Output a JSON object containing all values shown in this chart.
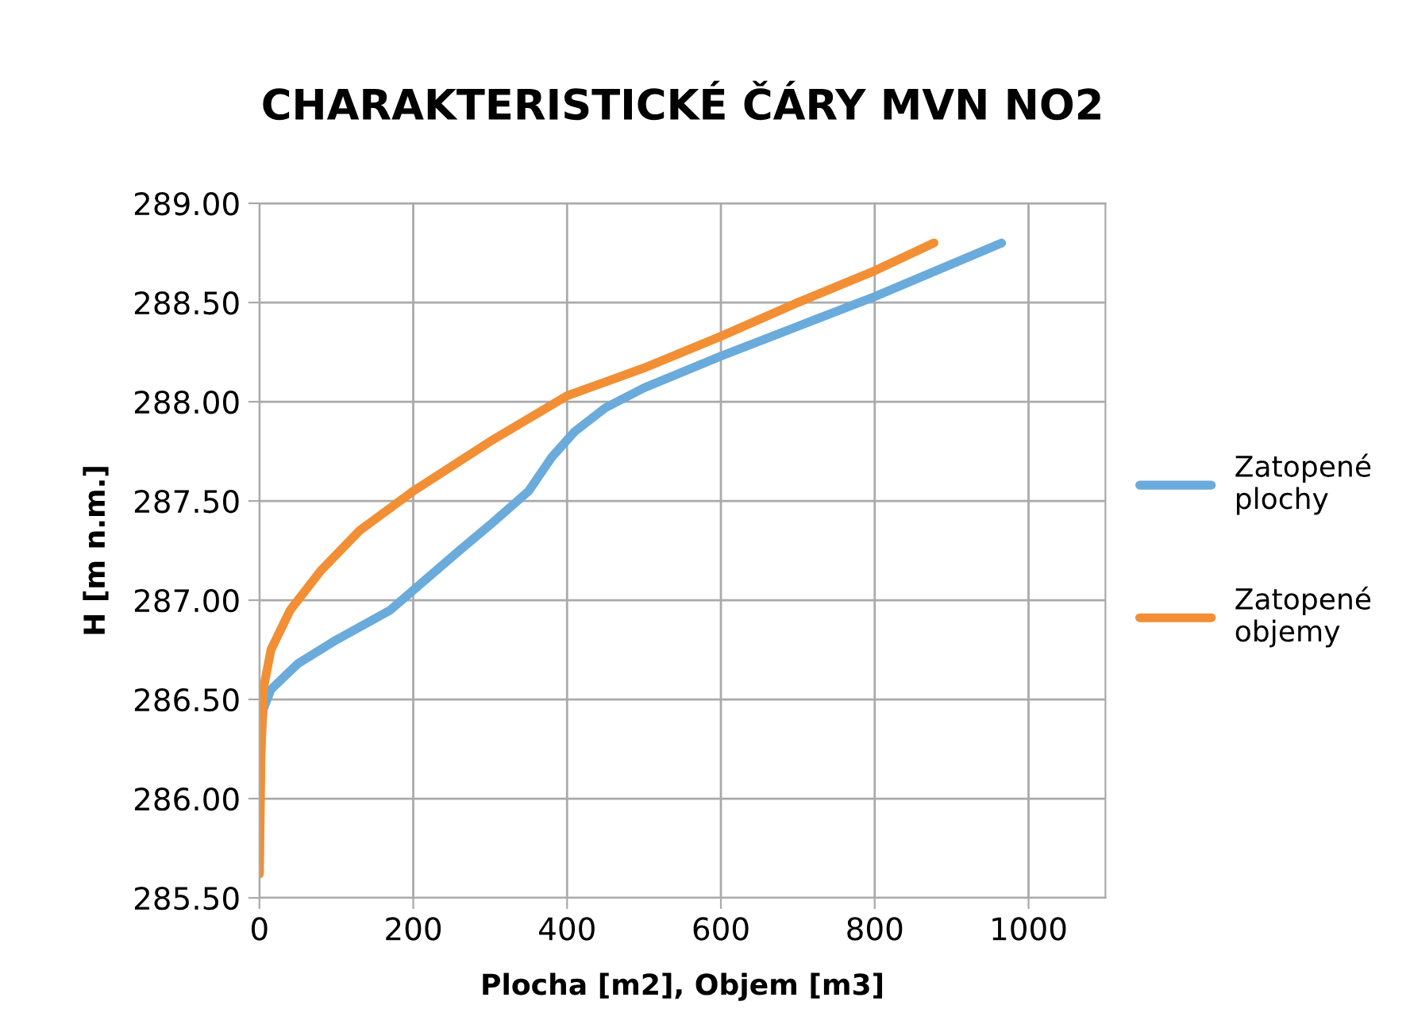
{
  "chart_data": {
    "type": "line",
    "title": "CHARAKTERISTICKÉ ČÁRY MVN NO2",
    "xlabel": "Plocha [m2], Objem [m3]",
    "ylabel": "H [m n.m.]",
    "xlim": [
      0,
      1100
    ],
    "xticks": [
      0,
      200,
      400,
      600,
      800,
      1000
    ],
    "ylim": [
      285.5,
      289.0
    ],
    "yticks": [
      {
        "value": 285.5,
        "label": "285.50"
      },
      {
        "value": 286.0,
        "label": "286.00"
      },
      {
        "value": 286.5,
        "label": "286.50"
      },
      {
        "value": 287.0,
        "label": "287.00"
      },
      {
        "value": 287.5,
        "label": "287.50"
      },
      {
        "value": 288.0,
        "label": "288.00"
      },
      {
        "value": 288.5,
        "label": "288.50"
      },
      {
        "value": 289.0,
        "label": "289.00"
      }
    ],
    "grid": true,
    "legend": "right",
    "marker": "none",
    "line_style": "solid",
    "series": [
      {
        "name": "Zatopené plochy",
        "color": "#6aabdc",
        "x": [
          0,
          5,
          15,
          50,
          100,
          170,
          200,
          260,
          300,
          350,
          380,
          410,
          450,
          500,
          600,
          700,
          800,
          965
        ],
        "values": [
          286.2,
          286.45,
          286.55,
          286.68,
          286.8,
          286.95,
          287.05,
          287.25,
          287.38,
          287.55,
          287.72,
          287.85,
          287.97,
          288.07,
          288.23,
          288.38,
          288.53,
          288.8
        ]
      },
      {
        "name": "Zatopené objemy",
        "color": "#f28f35",
        "x": [
          0,
          2,
          5,
          15,
          40,
          80,
          130,
          200,
          300,
          400,
          500,
          600,
          700,
          800,
          877
        ],
        "values": [
          285.62,
          286.2,
          286.55,
          286.75,
          286.95,
          287.15,
          287.35,
          287.55,
          287.8,
          288.03,
          288.17,
          288.33,
          288.5,
          288.66,
          288.8
        ]
      }
    ]
  }
}
